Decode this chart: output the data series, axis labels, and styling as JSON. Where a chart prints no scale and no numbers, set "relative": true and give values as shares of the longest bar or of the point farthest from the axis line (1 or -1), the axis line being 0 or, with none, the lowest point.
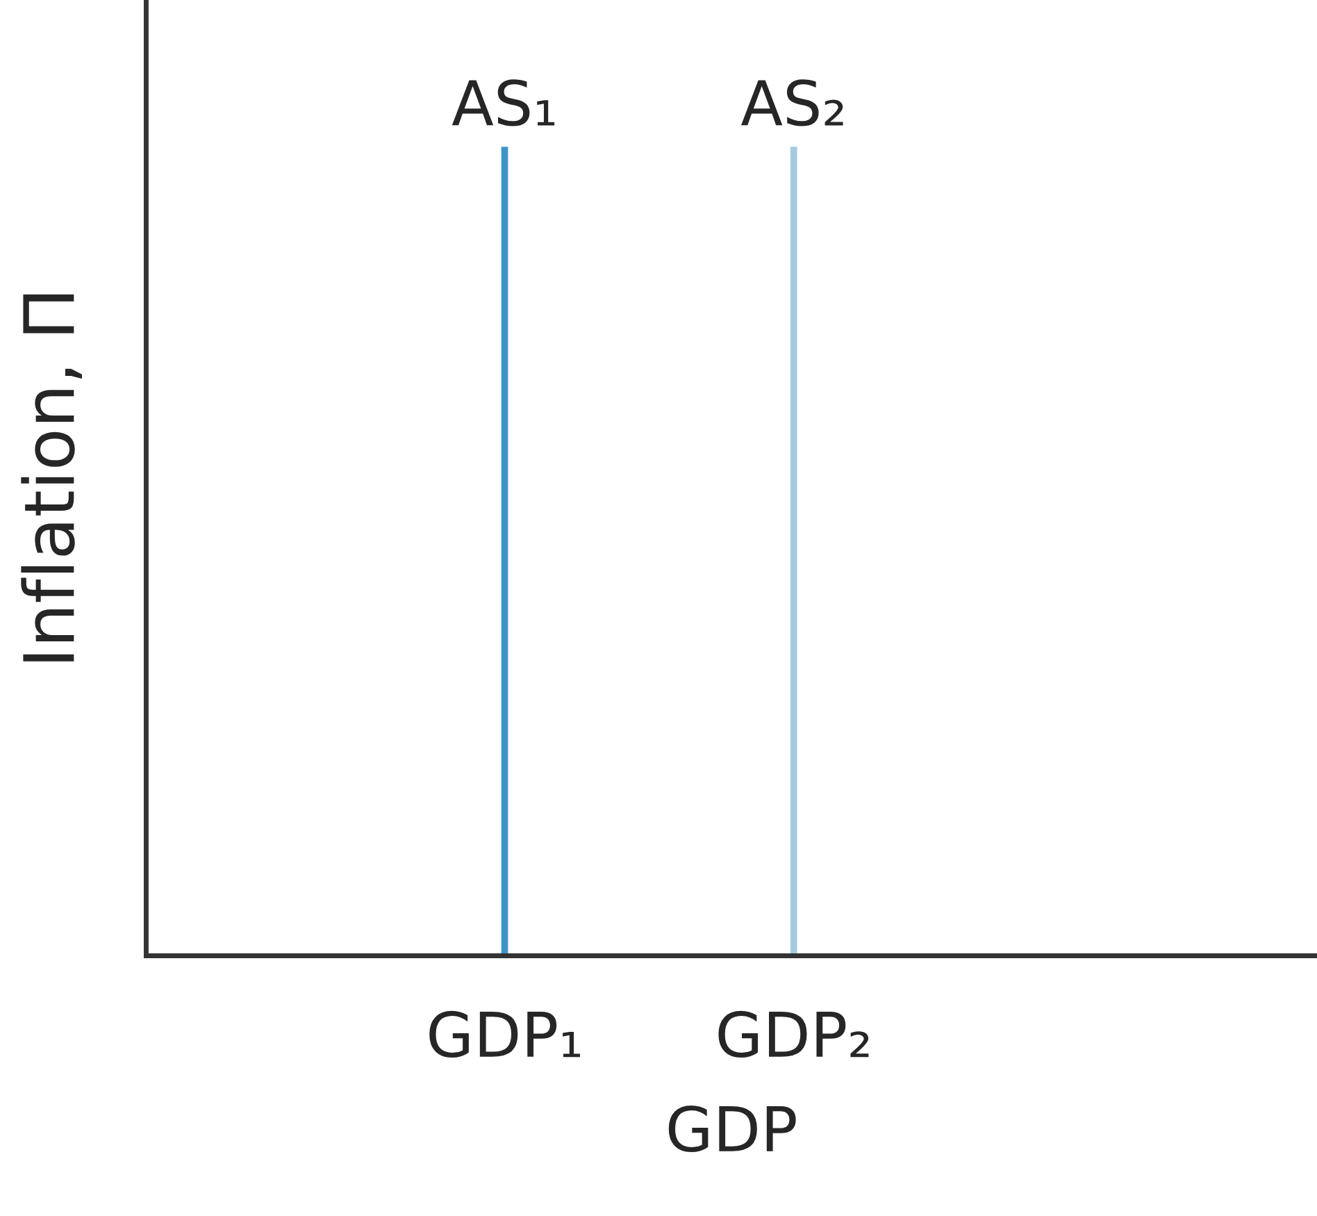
{
  "chart_data": {
    "type": "bar",
    "relative": true,
    "ylabel": "Inflation, Π",
    "xlabel": "GDP",
    "categories": [
      "GDP₁",
      "GDP₂"
    ],
    "values": [
      1,
      1
    ],
    "colors": [
      "#3d94c8",
      "#a6c9e0"
    ],
    "annotations": [
      {
        "text": "AS₁",
        "x": "GDP₁",
        "y": 1
      },
      {
        "text": "AS₂",
        "x": "GDP₂",
        "y": 1
      }
    ]
  }
}
